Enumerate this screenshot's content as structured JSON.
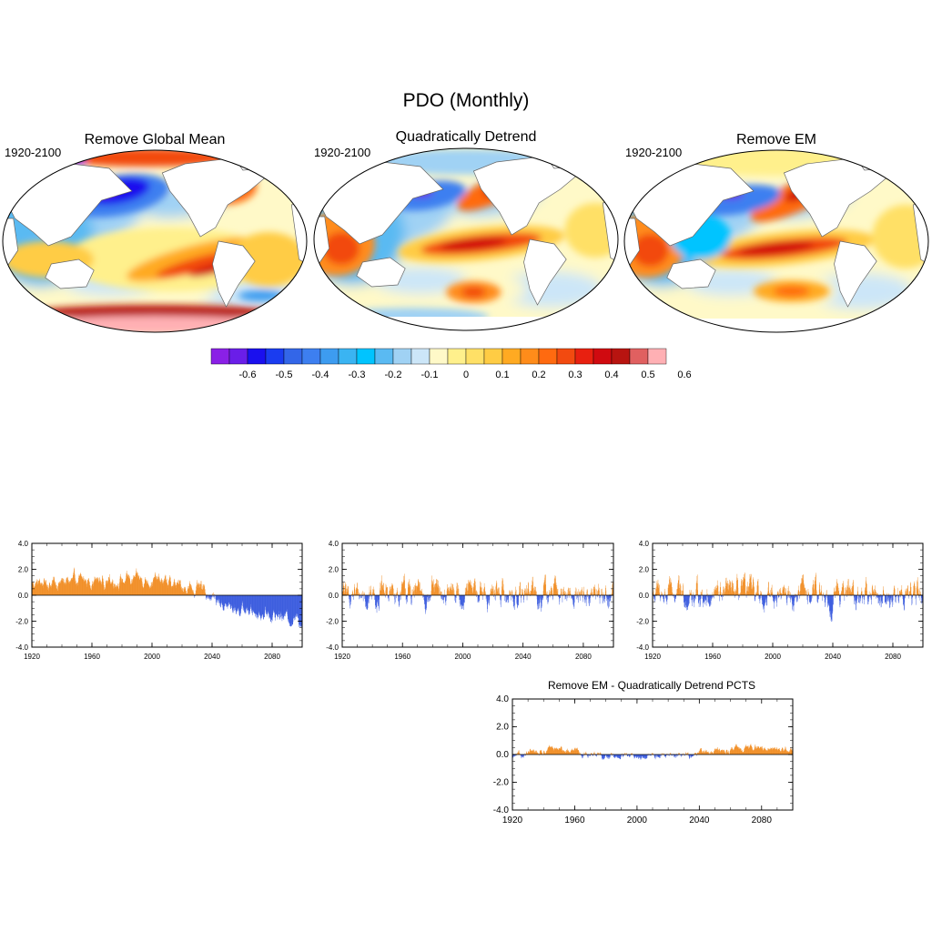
{
  "figure": {
    "title": "PDO (Monthly)"
  },
  "colors": {
    "positive": "#f08a1e",
    "negative": "#3355dd",
    "land": "#ffffff",
    "coast": "#666666"
  },
  "maps": [
    {
      "title": "Remove Global Mean",
      "period": "1920-2100",
      "style": "gm"
    },
    {
      "title": "Quadratically Detrend",
      "period": "1920-2100",
      "style": "qd"
    },
    {
      "title": "Remove EM",
      "period": "1920-2100",
      "style": "em"
    }
  ],
  "colorbar": {
    "colors": [
      "#8a20e6",
      "#6a1ee8",
      "#1a10ee",
      "#1a3cf0",
      "#3366e8",
      "#3d7ff0",
      "#3d9cf0",
      "#3ab4f2",
      "#00c4ff",
      "#5abaf2",
      "#a0d2f4",
      "#cce6f8",
      "#fff9c8",
      "#fff08c",
      "#ffe066",
      "#ffcc44",
      "#ffaa22",
      "#ff8c1a",
      "#ff6a10",
      "#f24a10",
      "#e82010",
      "#d00a10",
      "#b81410",
      "#e06060",
      "#ffb0b4"
    ],
    "tick_labels": [
      "-0.6",
      "-0.5",
      "-0.4",
      "-0.3",
      "-0.2",
      "-0.1",
      "0",
      "0.1",
      "0.2",
      "0.3",
      "0.4",
      "0.5",
      "0.6"
    ]
  },
  "chart_data": [
    {
      "type": "bar",
      "panel": "Remove Global Mean PC timeseries",
      "title": "",
      "x_start": 1920,
      "x_end": 2100,
      "ylim": [
        -4.0,
        4.0
      ],
      "yticks": [
        "4.0",
        "2.0",
        "0.0",
        "-2.0",
        "-4.0"
      ],
      "xticks": [
        "1920",
        "1960",
        "2000",
        "2040",
        "2080"
      ],
      "trend": [
        [
          1920,
          0.9
        ],
        [
          1960,
          1.1
        ],
        [
          2000,
          1.2
        ],
        [
          2035,
          0.3
        ],
        [
          2050,
          -0.9
        ],
        [
          2100,
          -1.9
        ]
      ],
      "variability": 0.55
    },
    {
      "type": "bar",
      "panel": "Quadratically Detrend PC timeseries",
      "title": "",
      "x_start": 1920,
      "x_end": 2100,
      "ylim": [
        -4.0,
        4.0
      ],
      "yticks": [
        "4.0",
        "2.0",
        "0.0",
        "-2.0",
        "-4.0"
      ],
      "xticks": [
        "1920",
        "1960",
        "2000",
        "2040",
        "2080"
      ],
      "trend": [
        [
          1920,
          0.1
        ],
        [
          2100,
          0.1
        ]
      ],
      "variability": 1.1
    },
    {
      "type": "bar",
      "panel": "Remove EM PC timeseries",
      "title": "",
      "x_start": 1920,
      "x_end": 2100,
      "ylim": [
        -4.0,
        4.0
      ],
      "yticks": [
        "4.0",
        "2.0",
        "0.0",
        "-2.0",
        "-4.0"
      ],
      "xticks": [
        "1920",
        "1960",
        "2000",
        "2040",
        "2080"
      ],
      "trend": [
        [
          1920,
          0.1
        ],
        [
          2100,
          0.0
        ]
      ],
      "variability": 1.1
    },
    {
      "type": "bar",
      "panel": "difference",
      "title": "Remove EM - Quadratically Detrend PCTS",
      "x_start": 1920,
      "x_end": 2100,
      "ylim": [
        -4.0,
        4.0
      ],
      "yticks": [
        "4.0",
        "2.0",
        "0.0",
        "-2.0",
        "-4.0"
      ],
      "xticks": [
        "1920",
        "1960",
        "2000",
        "2040",
        "2080"
      ],
      "trend": [
        [
          1920,
          -0.2
        ],
        [
          1945,
          0.4
        ],
        [
          1985,
          -0.2
        ],
        [
          2030,
          0.0
        ],
        [
          2075,
          0.5
        ],
        [
          2100,
          0.3
        ]
      ],
      "variability": 0.25
    }
  ]
}
